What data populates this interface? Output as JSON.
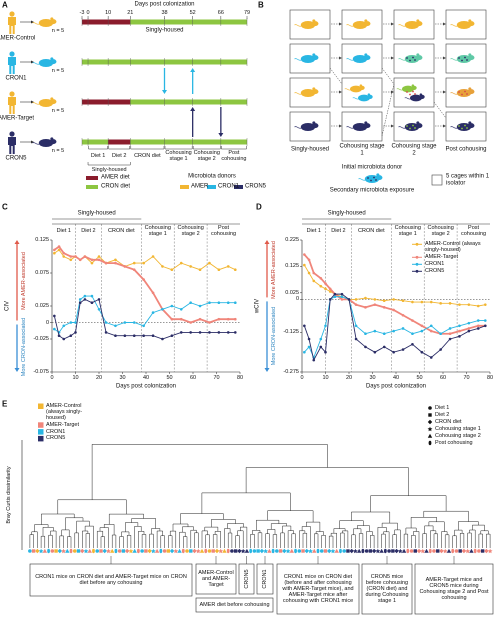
{
  "panel_a": {
    "label": "A",
    "axis_title": "Days post colonization",
    "day_ticks": [
      -3,
      0,
      10,
      21,
      38,
      52,
      66,
      79
    ],
    "groups": [
      "AMER-Control",
      "CRON1",
      "AMER-Target",
      "CRON5"
    ],
    "n_labels": [
      "n = 5",
      "n = 5",
      "n = 5",
      "n = 5"
    ],
    "housing_top": "Singly-housed",
    "phases": [
      "Diet 1",
      "Diet 2",
      "CRON diet",
      "Cohousing stage 1",
      "Cohousing stage 2",
      "Post cohousing"
    ],
    "housing_bottom": "Singly-housed",
    "legend_diet": [
      "AMER diet",
      "CRON diet"
    ],
    "legend_donors_title": "Microbiota donors",
    "legend_donors": [
      "AMER",
      "CRON1",
      "CRON5"
    ]
  },
  "panel_b": {
    "label": "B",
    "columns": [
      "Singly-housed",
      "Cohousing stage 1",
      "Cohousing stage 2",
      "Post cohousing"
    ],
    "initial_donor": "Initial microbiota donor",
    "secondary": "Secondary microbiota exposure",
    "cages": "5 cages within 1 isolator"
  },
  "chart_data": [
    {
      "type": "line",
      "label": "C",
      "ylabel": "CIV",
      "upper_note": "More AMER-associated",
      "lower_note": "More CRON-associated",
      "xlabel": "Days post colonization",
      "housing": "Singly-housed",
      "phases": [
        "Diet 1",
        "Diet 2",
        "CRON diet",
        "Cohousing stage 1",
        "Cohousing stage 2",
        "Post cohousing"
      ],
      "phase_bounds": [
        10,
        21,
        38,
        52,
        66
      ],
      "xlim": [
        0,
        80
      ],
      "xticks": [
        0,
        10,
        20,
        30,
        40,
        50,
        60,
        70,
        80
      ],
      "ylim": [
        -0.075,
        0.125
      ],
      "yticks": [
        -0.075,
        -0.025,
        0,
        0.025,
        0.075,
        0.125
      ],
      "x": [
        1,
        3,
        5,
        8,
        10,
        12,
        14,
        17,
        20,
        23,
        27,
        31,
        35,
        39,
        43,
        47,
        51,
        55,
        59,
        63,
        67,
        71,
        75,
        78
      ],
      "series": [
        {
          "color": "#f2b632",
          "values": [
            0.105,
            0.11,
            0.1,
            0.095,
            0.1,
            0.095,
            0.1,
            0.09,
            0.1,
            0.09,
            0.095,
            0.085,
            0.09,
            0.09,
            0.1,
            0.085,
            0.08,
            0.09,
            0.085,
            0.08,
            0.09,
            0.08,
            0.085,
            0.08
          ]
        },
        {
          "color": "#f0857a",
          "values": [
            0.11,
            0.115,
            0.105,
            0.1,
            0.1,
            0.095,
            0.1,
            0.095,
            0.095,
            0.09,
            0.09,
            0.085,
            0.08,
            0.065,
            0.045,
            0.02,
            0.005,
            0.005,
            0,
            0.005,
            0,
            0.005,
            0.005,
            0.005
          ]
        },
        {
          "color": "#29b6e3",
          "values": [
            -0.01,
            -0.015,
            -0.005,
            0,
            0,
            0.035,
            0.04,
            0.04,
            0.02,
            0,
            -0.005,
            0,
            0,
            -0.005,
            0.015,
            0.02,
            0.025,
            0.02,
            0.03,
            0.025,
            0.03,
            0.03,
            0.03,
            0.03
          ]
        },
        {
          "color": "#2b2d66",
          "values": [
            0.01,
            -0.02,
            -0.025,
            -0.02,
            -0.015,
            0.03,
            0.035,
            0.03,
            0.035,
            -0.015,
            -0.02,
            -0.02,
            -0.02,
            -0.02,
            -0.02,
            -0.025,
            -0.02,
            -0.015,
            -0.015,
            -0.015,
            -0.015,
            -0.015,
            -0.015,
            -0.015
          ]
        }
      ]
    },
    {
      "type": "line",
      "label": "D",
      "ylabel": "wCIV",
      "upper_note": "More AMER-associated",
      "lower_note": "More CRON-associated",
      "xlabel": "Days post colonization",
      "housing": "Singly-housed",
      "phases": [
        "Diet 1",
        "Diet 2",
        "CRON diet",
        "Cohousing stage 1",
        "Cohousing stage 2",
        "Post cohousing"
      ],
      "phase_bounds": [
        10,
        21,
        38,
        52,
        66
      ],
      "xlim": [
        0,
        80
      ],
      "xticks": [
        0,
        10,
        20,
        30,
        40,
        50,
        60,
        70,
        80
      ],
      "ylim": [
        -0.275,
        0.225
      ],
      "yticks": [
        -0.275,
        -0.125,
        0,
        0.025,
        0.125,
        0.225
      ],
      "x": [
        1,
        3,
        5,
        8,
        10,
        12,
        14,
        17,
        20,
        23,
        27,
        31,
        35,
        39,
        43,
        47,
        51,
        55,
        59,
        63,
        67,
        71,
        75,
        78
      ],
      "series": [
        {
          "name": "AMER-Control (always singly-housed)",
          "color": "#f2b632",
          "values": [
            0.13,
            0.1,
            0.07,
            0.05,
            0.04,
            0.03,
            0.02,
            0.01,
            0,
            0,
            0.005,
            0,
            -0.005,
            0,
            -0.005,
            -0.01,
            -0.01,
            -0.01,
            -0.015,
            -0.015,
            -0.02,
            -0.02,
            -0.025,
            -0.02
          ]
        },
        {
          "name": "AMER-Target",
          "color": "#f0857a",
          "values": [
            0.17,
            0.15,
            0.1,
            0.08,
            0.06,
            0.04,
            0.02,
            0,
            0,
            -0.02,
            -0.03,
            -0.02,
            -0.03,
            -0.04,
            -0.06,
            -0.08,
            -0.1,
            -0.12,
            -0.13,
            -0.13,
            -0.12,
            -0.11,
            -0.1,
            -0.1
          ]
        },
        {
          "name": "CRON1",
          "color": "#29b6e3",
          "values": [
            -0.2,
            -0.18,
            -0.22,
            -0.15,
            -0.1,
            0,
            0.01,
            0.01,
            0,
            -0.1,
            -0.13,
            -0.12,
            -0.13,
            -0.12,
            -0.11,
            -0.13,
            -0.12,
            -0.1,
            -0.13,
            -0.11,
            -0.1,
            -0.09,
            -0.08,
            -0.08
          ]
        },
        {
          "name": "CRON5",
          "color": "#2b2d66",
          "values": [
            -0.1,
            -0.15,
            -0.23,
            -0.18,
            -0.2,
            0,
            0.02,
            0.02,
            0,
            -0.15,
            -0.18,
            -0.2,
            -0.18,
            -0.2,
            -0.19,
            -0.17,
            -0.2,
            -0.22,
            -0.19,
            -0.15,
            -0.14,
            -0.12,
            -0.11,
            -0.1
          ]
        }
      ]
    }
  ],
  "panel_e": {
    "label": "E",
    "ylabel": "Bray Curtis dissimilarity",
    "legend_groups": [
      "AMER-Control (always singly-housed)",
      "AMER-Target",
      "CRON1",
      "CRON5"
    ],
    "legend_stages": [
      "Diet 1",
      "Diet 2",
      "CRON diet",
      "Cohousing stage 1",
      "Cohousing stage 2",
      "Post cohousing"
    ],
    "boxes": [
      "CRON1 mice on CRON diet and AMER-Target mice on CRON diet before any cohousing",
      "AMER-Control and AMER-Target",
      "AMER diet before cohousing",
      "CRON5",
      "CRON1",
      "CRON1 mice on CRON diet (before and after cohousing with AMER-Target mice), and AMER-Target mice after cohousing with CRON1 mice",
      "CRON5 mice before cohousing (CRON diet) and during Cohousing stage 1",
      "AMER-Target mice and CRON5 mice during Cohousing stage 2 and Post cohousing"
    ]
  }
}
